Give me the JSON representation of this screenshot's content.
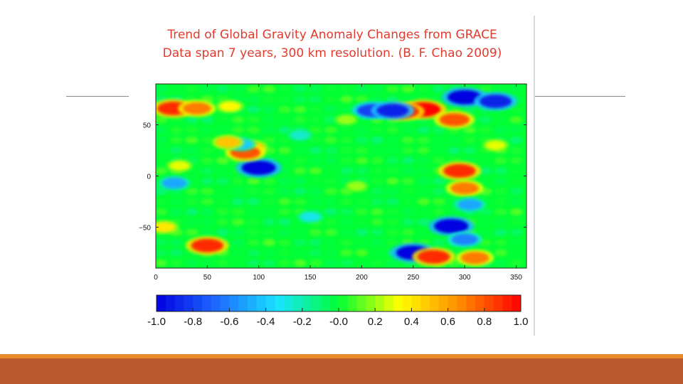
{
  "slide": {
    "colors": {
      "accent_top": "#e98a2a",
      "accent_bottom": "#b85a2e",
      "rule": "#8a8a8a"
    }
  },
  "chart_data": {
    "type": "heatmap",
    "title": "Trend of Global Gravity Anomaly Changes from GRACE",
    "subtitle": "Data span 7 years, 300 km resolution. (B. F. Chao 2009)",
    "title_color": "#e23b2e",
    "xlim": [
      0,
      360
    ],
    "ylim": [
      -90,
      90
    ],
    "x_ticks": [
      "0",
      "50",
      "100",
      "150",
      "200",
      "250",
      "300",
      "350"
    ],
    "x_tick_values": [
      0,
      50,
      100,
      150,
      200,
      250,
      300,
      350
    ],
    "y_ticks": [
      "50",
      "0",
      "−50"
    ],
    "y_tick_values": [
      50,
      0,
      -50
    ],
    "colorbar": {
      "range": [
        -1.0,
        1.0
      ],
      "tick_labels": [
        "-1.0",
        "-0.8",
        "-0.6",
        "-0.4",
        "-0.2",
        "-0.0",
        "0.2",
        "0.4",
        "0.6",
        "0.8",
        "1.0"
      ],
      "tick_values": [
        -1.0,
        -0.8,
        -0.6,
        -0.4,
        -0.2,
        0.0,
        0.2,
        0.4,
        0.6,
        0.8,
        1.0
      ],
      "colormap": [
        "#0000e0",
        "#1e6bff",
        "#19e3ff",
        "#00ff35",
        "#ffff00",
        "#ff8a00",
        "#ff0000"
      ]
    },
    "background_value": 0.0,
    "anomalies": [
      {
        "lon": 17,
        "lat": 66,
        "value": 0.9
      },
      {
        "lon": 40,
        "lat": 66,
        "value": 0.7
      },
      {
        "lon": 72,
        "lat": 68,
        "value": 0.35
      },
      {
        "lon": 260,
        "lat": 65,
        "value": 1.0
      },
      {
        "lon": 240,
        "lat": 63,
        "value": 0.9
      },
      {
        "lon": 290,
        "lat": 55,
        "value": 0.8
      },
      {
        "lon": 300,
        "lat": 77,
        "value": -1.0
      },
      {
        "lon": 330,
        "lat": 73,
        "value": -0.9
      },
      {
        "lon": 210,
        "lat": 64,
        "value": -0.8
      },
      {
        "lon": 230,
        "lat": 64,
        "value": -0.9
      },
      {
        "lon": 100,
        "lat": 8,
        "value": -1.0
      },
      {
        "lon": 93,
        "lat": 28,
        "value": 0.5
      },
      {
        "lon": 87,
        "lat": 23,
        "value": 0.8
      },
      {
        "lon": 83,
        "lat": 31,
        "value": -0.4
      },
      {
        "lon": 70,
        "lat": 33,
        "value": 0.5
      },
      {
        "lon": 18,
        "lat": -7,
        "value": -0.5
      },
      {
        "lon": 23,
        "lat": 10,
        "value": 0.3
      },
      {
        "lon": 295,
        "lat": 5,
        "value": 0.9
      },
      {
        "lon": 300,
        "lat": -12,
        "value": 0.7
      },
      {
        "lon": 305,
        "lat": -28,
        "value": -0.5
      },
      {
        "lon": 287,
        "lat": -49,
        "value": -1.0
      },
      {
        "lon": 300,
        "lat": -62,
        "value": -0.6
      },
      {
        "lon": 50,
        "lat": -68,
        "value": 0.9
      },
      {
        "lon": 250,
        "lat": -75,
        "value": -1.0
      },
      {
        "lon": 270,
        "lat": -79,
        "value": 0.9
      },
      {
        "lon": 310,
        "lat": -80,
        "value": 0.7
      },
      {
        "lon": 8,
        "lat": -50,
        "value": 0.4
      },
      {
        "lon": 150,
        "lat": -40,
        "value": -0.3
      },
      {
        "lon": 195,
        "lat": -10,
        "value": 0.2
      },
      {
        "lon": 330,
        "lat": 30,
        "value": 0.3
      },
      {
        "lon": 185,
        "lat": 55,
        "value": 0.2
      },
      {
        "lon": 140,
        "lat": 40,
        "value": -0.25
      }
    ]
  }
}
